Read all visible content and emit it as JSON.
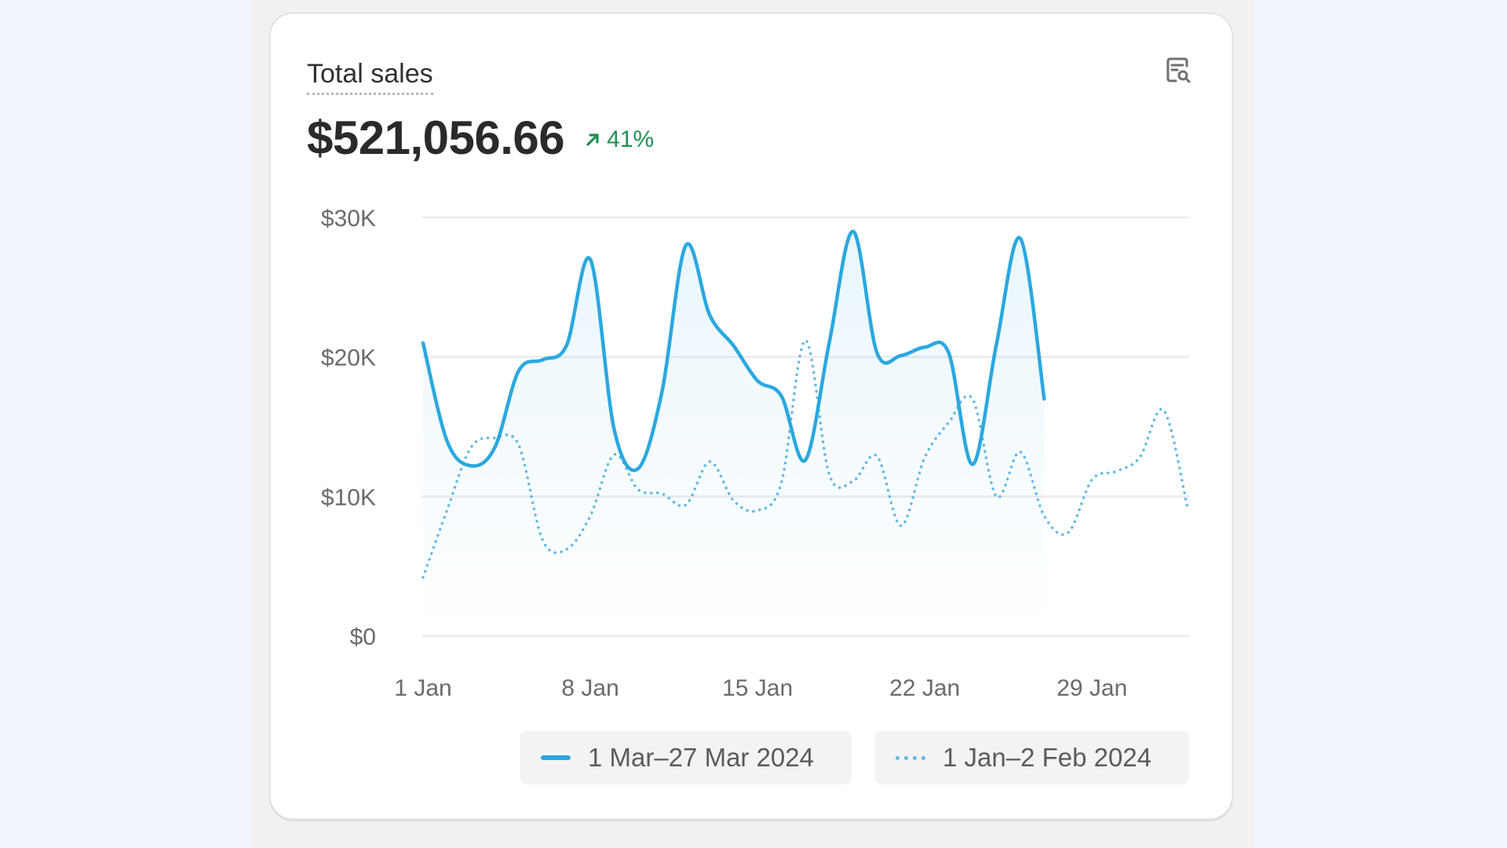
{
  "card": {
    "title": "Total sales",
    "value": "$521,056.66",
    "change": "41%",
    "change_direction": "up",
    "toolbar_icon": "report-search-icon"
  },
  "legend": [
    {
      "label": "1 Mar–27 Mar 2024",
      "style": "solid",
      "color": "#2aa8df"
    },
    {
      "label": "1 Jan–2 Feb 2024",
      "style": "dotted",
      "color": "#61b9e4"
    }
  ],
  "chart_data": {
    "type": "line",
    "title": "Total sales",
    "xlabel": "",
    "ylabel": "",
    "x_ticks": [
      "1 Jan",
      "8 Jan",
      "15 Jan",
      "22 Jan",
      "29 Jan"
    ],
    "y_ticks": [
      "$0",
      "$10K",
      "$20K",
      "$30K"
    ],
    "ylim": [
      0,
      30000
    ],
    "grid": true,
    "series": [
      {
        "name": "1 Mar–27 Mar 2024",
        "style": "solid",
        "color": "#2aa8df",
        "values": [
          21000,
          14000,
          12200,
          13500,
          19000,
          19800,
          20800,
          27000,
          14800,
          12000,
          17500,
          28000,
          23000,
          20800,
          18300,
          17200,
          12600,
          21000,
          29000,
          20300,
          20100,
          20700,
          20300,
          12300,
          20900,
          28500,
          17000
        ]
      },
      {
        "name": "1 Jan–2 Feb 2024",
        "style": "dotted",
        "color": "#61b9e4",
        "values": [
          4200,
          9000,
          13500,
          14200,
          13700,
          6900,
          6200,
          8600,
          13000,
          10500,
          10200,
          9400,
          12500,
          9700,
          9000,
          11000,
          21200,
          11600,
          11100,
          12900,
          7900,
          12800,
          15300,
          17000,
          10000,
          13200,
          8600,
          7400,
          11200,
          11800,
          12800,
          16200,
          9200
        ]
      }
    ]
  }
}
